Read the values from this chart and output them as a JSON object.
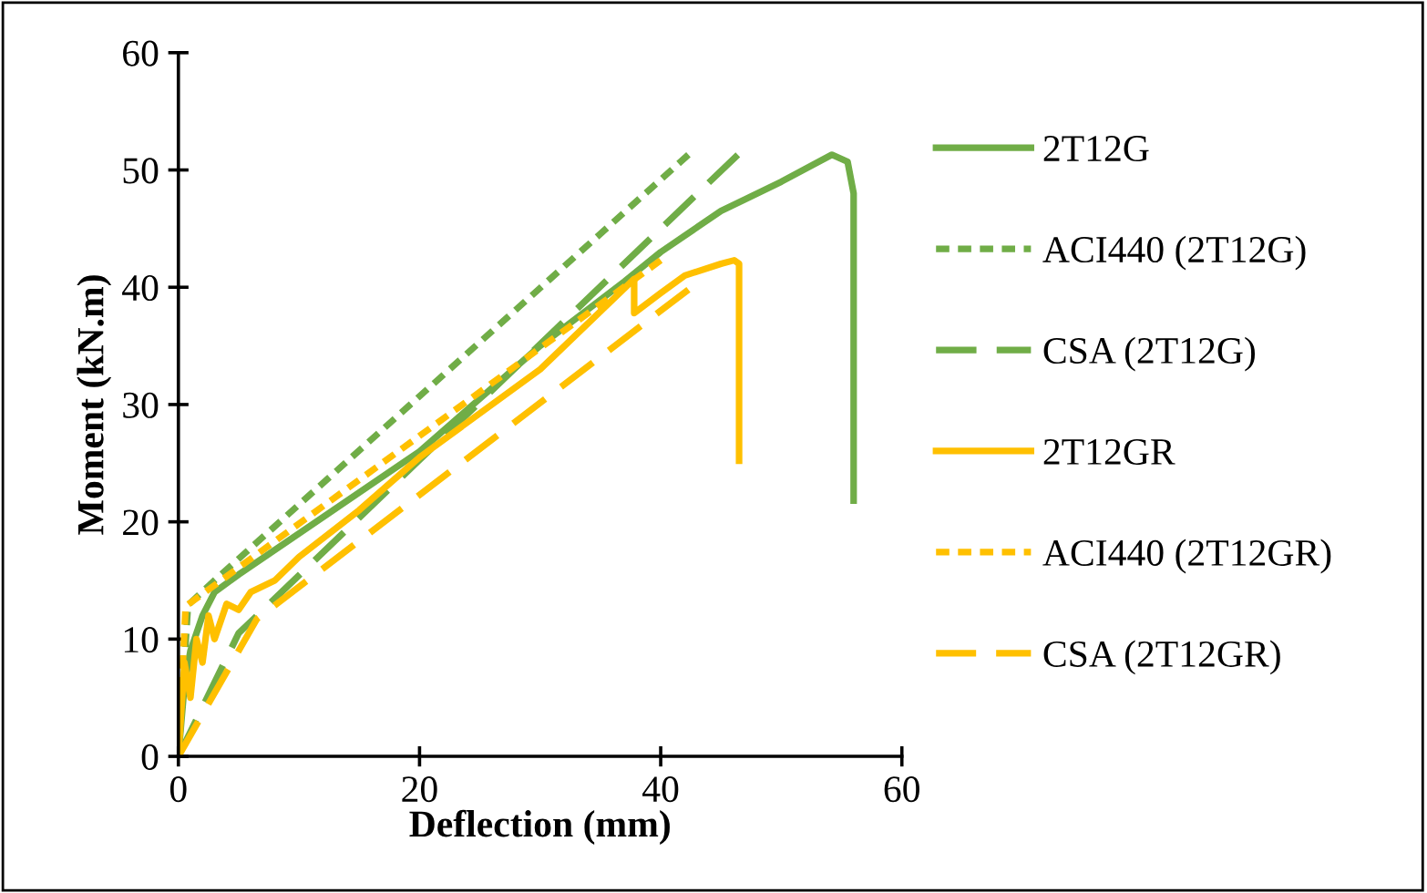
{
  "chart_data": {
    "type": "line",
    "xlabel": "Deflection (mm)",
    "ylabel": "Moment (kN.m)",
    "xlim": [
      0,
      60
    ],
    "xticks": [
      0,
      20,
      40,
      60
    ],
    "ylim": [
      0,
      60
    ],
    "yticks": [
      0,
      10,
      20,
      30,
      40,
      50,
      60
    ],
    "grid": false,
    "legend": "right",
    "marker": "none",
    "series": [
      {
        "name": "2T12G",
        "color": "#70ad47",
        "line_style": "solid",
        "x": [
          0,
          0.5,
          1,
          2,
          3,
          5,
          10,
          20,
          30,
          37,
          40,
          45,
          47,
          50,
          54.2,
          55.5,
          56,
          56
        ],
        "values": [
          0,
          6,
          9,
          12,
          14,
          15.5,
          19,
          26,
          35,
          40.5,
          43,
          46.5,
          47.5,
          49,
          51.3,
          50.7,
          48,
          21.8
        ]
      },
      {
        "name": "ACI440 (2T12G)",
        "color": "#70ad47",
        "line_style": "dotted",
        "x": [
          0,
          0.8,
          3,
          42.3
        ],
        "values": [
          0,
          12.9,
          15,
          51.3
        ]
      },
      {
        "name": "CSA (2T12G)",
        "color": "#70ad47",
        "line_style": "dashed",
        "x": [
          0,
          5,
          46.4
        ],
        "values": [
          0,
          10.5,
          51.3
        ]
      },
      {
        "name": "2T12GR",
        "color": "#ffc000",
        "line_style": "solid",
        "x": [
          0,
          0.5,
          1,
          1.5,
          2,
          2.5,
          3,
          4,
          5,
          6,
          8,
          10,
          15,
          20,
          30,
          37.8,
          37.8,
          40,
          42,
          45,
          46.1,
          46.5,
          46.5
        ],
        "values": [
          0,
          8,
          5,
          10,
          8,
          12,
          10,
          13,
          12.5,
          14,
          15,
          17,
          21,
          25.5,
          33,
          40.7,
          37.8,
          39.5,
          41,
          42,
          42.3,
          42,
          25.2
        ]
      },
      {
        "name": "ACI440 (2T12GR)",
        "color": "#ffc000",
        "line_style": "dotted",
        "x": [
          0,
          0.6,
          40
        ],
        "values": [
          0,
          12.8,
          42.3
        ]
      },
      {
        "name": "CSA (2T12GR)",
        "color": "#ffc000",
        "line_style": "dashed",
        "x": [
          0,
          6.5,
          42.3
        ],
        "values": [
          0,
          11.7,
          39.8
        ]
      }
    ]
  }
}
